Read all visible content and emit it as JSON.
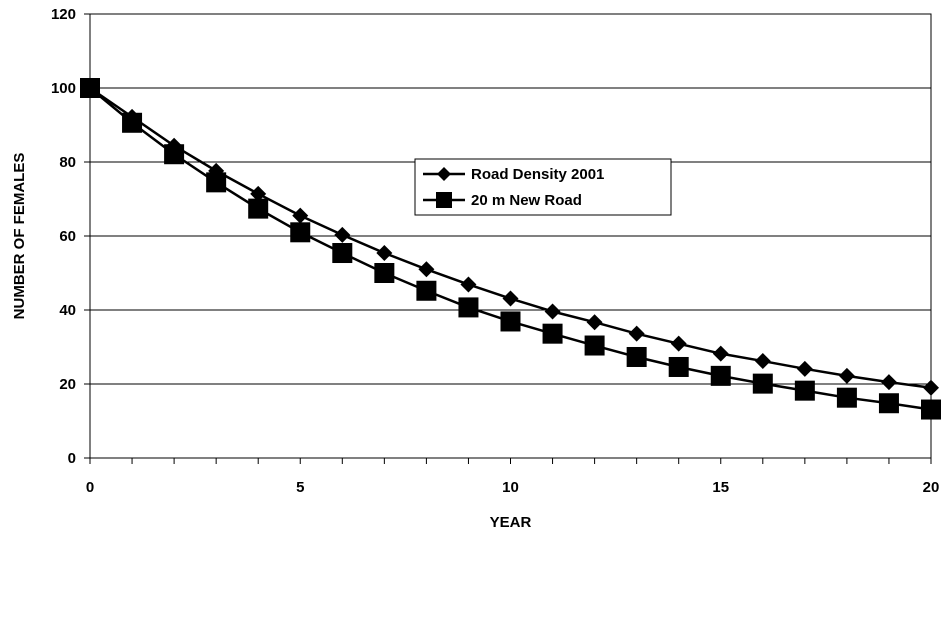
{
  "chart_data": {
    "type": "line",
    "title": "",
    "xlabel": "YEAR",
    "ylabel": "NUMBER OF FEMALES",
    "xlim": [
      0,
      20
    ],
    "ylim": [
      0,
      120
    ],
    "xticks": [
      "0",
      "5",
      "10",
      "15",
      "20"
    ],
    "yticks": [
      "0",
      "20",
      "40",
      "60",
      "80",
      "100",
      "120"
    ],
    "grid": "horizontal",
    "legend_position": "center",
    "x": [
      0,
      1,
      2,
      3,
      4,
      5,
      6,
      7,
      8,
      9,
      10,
      11,
      12,
      13,
      14,
      15,
      16,
      17,
      18,
      19,
      20
    ],
    "series": [
      {
        "name": "Road Density 2001",
        "marker": "diamond",
        "color": "#000000",
        "values": [
          100,
          92.2,
          84.4,
          77.6,
          71.4,
          65.5,
          60.3,
          55.4,
          51.0,
          46.9,
          43.1,
          39.6,
          36.7,
          33.6,
          30.9,
          28.2,
          26.2,
          24.1,
          22.2,
          20.5,
          19.0
        ]
      },
      {
        "name": "20 m New Road",
        "marker": "square",
        "color": "#000000",
        "values": [
          100,
          90.6,
          82.1,
          74.5,
          67.4,
          61.0,
          55.4,
          50.0,
          45.2,
          40.7,
          36.9,
          33.6,
          30.4,
          27.3,
          24.6,
          22.2,
          20.1,
          18.2,
          16.3,
          14.8,
          13.1
        ]
      }
    ]
  }
}
